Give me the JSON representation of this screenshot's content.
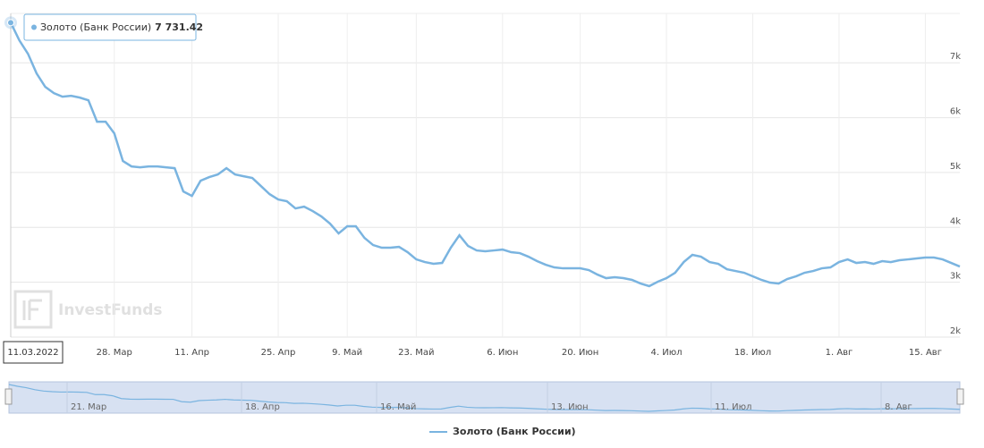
{
  "chart_data": {
    "type": "line",
    "watermark": "InvestFunds",
    "categories": [
      "11.03.2022",
      null,
      null,
      null,
      null,
      null,
      null,
      null,
      null,
      null,
      null,
      null,
      "28. Мар",
      null,
      null,
      null,
      null,
      null,
      null,
      null,
      null,
      "11. Апр",
      null,
      null,
      null,
      null,
      null,
      null,
      null,
      null,
      null,
      "25. Апр",
      null,
      null,
      null,
      null,
      null,
      null,
      null,
      "9. Май",
      null,
      null,
      null,
      null,
      null,
      null,
      null,
      "23. Май",
      null,
      null,
      null,
      null,
      null,
      null,
      null,
      null,
      null,
      "6. Июн",
      null,
      null,
      null,
      null,
      null,
      null,
      null,
      null,
      "20. Июн",
      null,
      null,
      null,
      null,
      null,
      null,
      null,
      null,
      null,
      "4. Июл",
      null,
      null,
      null,
      null,
      null,
      null,
      null,
      null,
      null,
      "18. Июл",
      null,
      null,
      null,
      null,
      null,
      null,
      null,
      null,
      null,
      "1. Авг",
      null,
      null,
      null,
      null,
      null,
      null,
      null,
      null,
      null,
      "15. Авг",
      null,
      null,
      null,
      null
    ],
    "series": [
      {
        "name": "Золото (Банк России)",
        "color": "#7ab4e0",
        "values": [
          7731.42,
          7408,
          7164,
          6806,
          6561,
          6447,
          6382,
          6398,
          6366,
          6317,
          5926,
          5926,
          5714,
          5209,
          5111,
          5095,
          5111,
          5111,
          5095,
          5079,
          4655,
          4574,
          4851,
          4916,
          4965,
          5079,
          4965,
          4932,
          4900,
          4753,
          4606,
          4509,
          4476,
          4346,
          4378,
          4297,
          4199,
          4069,
          3890,
          4020,
          4020,
          3808,
          3678,
          3629,
          3629,
          3645,
          3548,
          3417,
          3368,
          3336,
          3352,
          3629,
          3857,
          3662,
          3580,
          3564,
          3580,
          3596,
          3548,
          3531,
          3466,
          3385,
          3319,
          3271,
          3254,
          3254,
          3254,
          3222,
          3140,
          3075,
          3091,
          3075,
          3043,
          2977,
          2929,
          3010,
          3075,
          3173,
          3368,
          3499,
          3466,
          3368,
          3336,
          3238,
          3205,
          3173,
          3108,
          3043,
          2994,
          2977,
          3059,
          3108,
          3173,
          3205,
          3254,
          3271,
          3368,
          3417,
          3352,
          3368,
          3336,
          3385,
          3368,
          3401,
          3417,
          3434,
          3450,
          3450,
          3417,
          3352,
          3287
        ],
        "value_labels": [
          "7 731.42",
          null,
          null,
          null,
          null,
          null,
          null,
          null,
          null,
          null,
          null,
          null,
          null,
          null,
          null,
          null,
          null,
          null,
          null,
          null,
          null,
          null,
          null,
          null,
          null,
          null,
          null,
          null,
          null,
          null,
          null,
          null,
          null,
          null,
          null,
          null,
          null,
          null,
          null,
          null,
          null,
          null,
          null,
          null,
          null,
          null,
          null,
          null,
          null,
          null,
          null,
          null,
          null,
          null,
          null,
          null,
          null,
          null,
          null,
          null,
          null,
          null,
          null,
          null,
          null,
          null,
          null,
          null,
          null,
          null,
          null,
          null,
          null,
          null,
          null,
          null,
          null,
          null,
          null,
          null,
          null,
          null,
          null,
          null,
          null,
          null,
          null,
          null,
          null,
          null,
          null,
          null,
          null,
          null,
          null,
          null,
          null,
          null,
          null,
          null,
          null,
          null,
          null,
          null,
          null,
          null,
          null,
          null,
          null,
          null,
          null
        ]
      }
    ],
    "ylim": [
      2000,
      7900
    ],
    "yticks": [
      {
        "value": 2000,
        "label": "2k"
      },
      {
        "value": 3000,
        "label": "3k"
      },
      {
        "value": 4000,
        "label": "4k"
      },
      {
        "value": 5000,
        "label": "5k"
      },
      {
        "value": 6000,
        "label": "6k"
      },
      {
        "value": 7000,
        "label": "7k"
      }
    ],
    "grid": true,
    "navigator_labels": [
      "21. Мар",
      "18. Апр",
      "16. Май",
      "13. Июн",
      "11. Июл",
      "8. Авг"
    ]
  }
}
